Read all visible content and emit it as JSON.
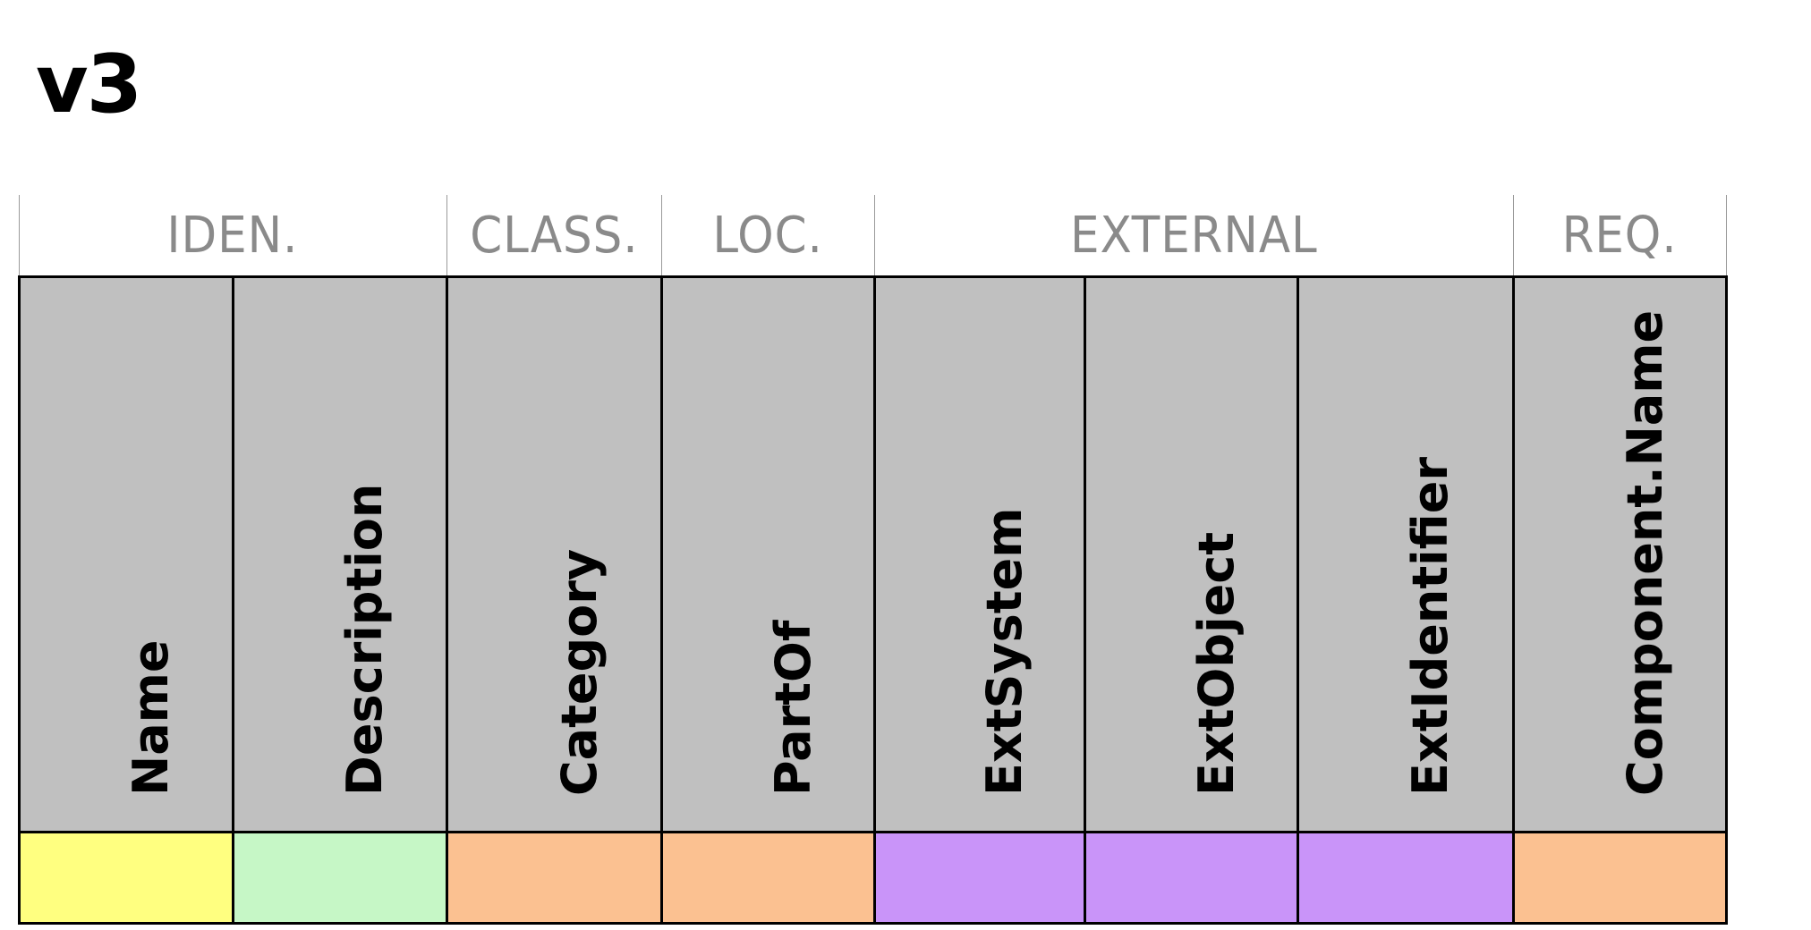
{
  "title": "v3",
  "groups": [
    {
      "label": "IDEN."
    },
    {
      "label": "CLASS."
    },
    {
      "label": "LOC."
    },
    {
      "label": "EXTERNAL"
    },
    {
      "label": "REQ."
    }
  ],
  "columns": [
    {
      "label": "Name",
      "color": "#ffff80"
    },
    {
      "label": "Description",
      "color": "#c6f7c6"
    },
    {
      "label": "Category",
      "color": "#fbc191"
    },
    {
      "label": "PartOf",
      "color": "#fbc191"
    },
    {
      "label": "ExtSystem",
      "color": "#c994f9"
    },
    {
      "label": "ExtObject",
      "color": "#c994f9"
    },
    {
      "label": "ExtIdentifier",
      "color": "#c994f9"
    },
    {
      "label": "Component.Name",
      "color": "#fbc191"
    }
  ]
}
